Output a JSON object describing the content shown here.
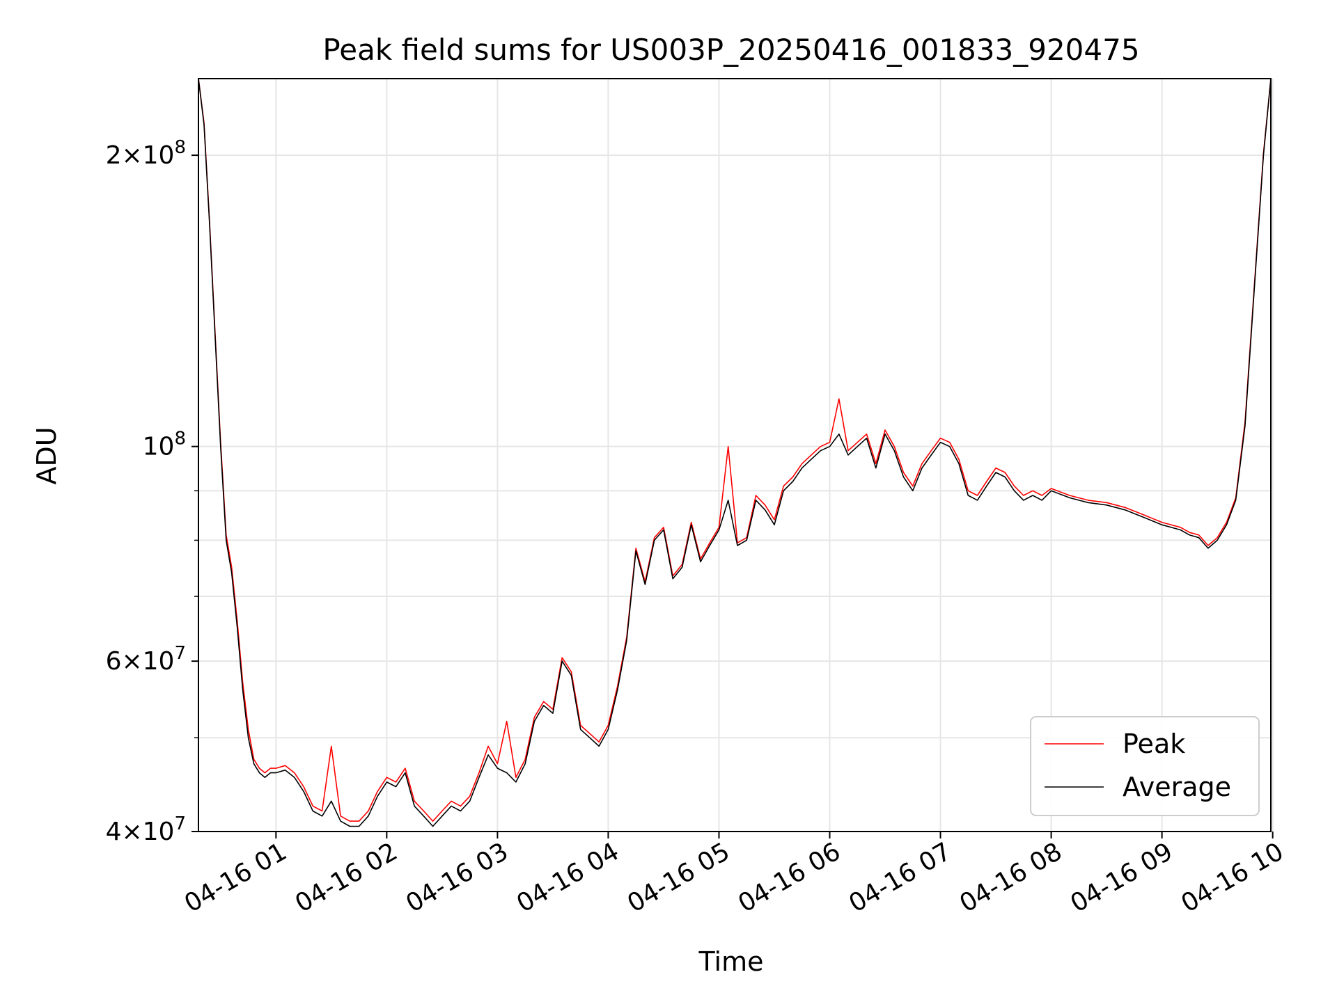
{
  "chart_data": {
    "type": "line",
    "title": "Peak field sums for US003P_20250416_001833_920475",
    "xlabel": "Time",
    "ylabel": "ADU",
    "y_scale": "log",
    "x_range": [
      "2025-04-16 00:18",
      "2025-04-16 09:59"
    ],
    "ylim": [
      40000000,
      240000000
    ],
    "x_ticks": [
      "04-16 01",
      "04-16 02",
      "04-16 03",
      "04-16 04",
      "04-16 05",
      "04-16 06",
      "04-16 07",
      "04-16 08",
      "04-16 09",
      "04-16 10"
    ],
    "y_ticks": [
      {
        "value": 40000000,
        "mant": "4",
        "exp": "7"
      },
      {
        "value": 60000000,
        "mant": "6",
        "exp": "7"
      },
      {
        "value": 100000000,
        "mant": "",
        "exp": "8"
      },
      {
        "value": 200000000,
        "mant": "2",
        "exp": "8"
      }
    ],
    "y_minor_ticks": [
      50000000,
      70000000,
      80000000,
      90000000
    ],
    "grid": true,
    "legend_position": "lower-right",
    "x_unit": "hours",
    "series": [
      {
        "name": "Average",
        "color": "#000000",
        "x": [
          "00:18",
          "00:21",
          "00:24",
          "00:27",
          "00:30",
          "00:33",
          "00:36",
          "00:39",
          "00:42",
          "00:45",
          "00:48",
          "00:51",
          "00:54",
          "00:57",
          "01:00",
          "01:05",
          "01:10",
          "01:15",
          "01:20",
          "01:25",
          "01:30",
          "01:35",
          "01:40",
          "01:45",
          "01:50",
          "01:55",
          "02:00",
          "02:05",
          "02:10",
          "02:15",
          "02:20",
          "02:25",
          "02:30",
          "02:35",
          "02:40",
          "02:45",
          "02:50",
          "02:55",
          "03:00",
          "03:05",
          "03:10",
          "03:15",
          "03:20",
          "03:25",
          "03:30",
          "03:35",
          "03:40",
          "03:45",
          "03:50",
          "03:55",
          "04:00",
          "04:05",
          "04:10",
          "04:15",
          "04:20",
          "04:25",
          "04:30",
          "04:35",
          "04:40",
          "04:45",
          "04:50",
          "04:55",
          "05:00",
          "05:05",
          "05:10",
          "05:15",
          "05:20",
          "05:25",
          "05:30",
          "05:35",
          "05:40",
          "05:45",
          "05:50",
          "05:55",
          "06:00",
          "06:05",
          "06:10",
          "06:15",
          "06:20",
          "06:25",
          "06:30",
          "06:35",
          "06:40",
          "06:45",
          "06:50",
          "06:55",
          "07:00",
          "07:05",
          "07:10",
          "07:15",
          "07:20",
          "07:25",
          "07:30",
          "07:35",
          "07:40",
          "07:45",
          "07:50",
          "07:55",
          "08:00",
          "08:10",
          "08:20",
          "08:30",
          "08:40",
          "08:50",
          "09:00",
          "09:10",
          "09:15",
          "09:20",
          "09:25",
          "09:30",
          "09:35",
          "09:40",
          "09:45",
          "09:50",
          "09:55",
          "09:59"
        ],
        "values": [
          240000000,
          215000000,
          170000000,
          130000000,
          100000000,
          80000000,
          74000000,
          65000000,
          56000000,
          50000000,
          47000000,
          46000000,
          45500000,
          46000000,
          46000000,
          46300000,
          45500000,
          44000000,
          42000000,
          41500000,
          43000000,
          41000000,
          40500000,
          40500000,
          41500000,
          43500000,
          45000000,
          44500000,
          46000000,
          42500000,
          41500000,
          40500000,
          41500000,
          42500000,
          42000000,
          43000000,
          45500000,
          48000000,
          46500000,
          46000000,
          45000000,
          47000000,
          52000000,
          54000000,
          53000000,
          60000000,
          58000000,
          51000000,
          50000000,
          49000000,
          51000000,
          56000000,
          63000000,
          78000000,
          72000000,
          80000000,
          82000000,
          73000000,
          75000000,
          83000000,
          76000000,
          79000000,
          82000000,
          88000000,
          79000000,
          80000000,
          88000000,
          86000000,
          83000000,
          90000000,
          92000000,
          95000000,
          97000000,
          99000000,
          100000000,
          103000000,
          98000000,
          100000000,
          102000000,
          95000000,
          103000000,
          99000000,
          93000000,
          90000000,
          95000000,
          98000000,
          101000000,
          100000000,
          96000000,
          89000000,
          88000000,
          91000000,
          94000000,
          93000000,
          90000000,
          88000000,
          89000000,
          88000000,
          90000000,
          88500000,
          87500000,
          87000000,
          86000000,
          84500000,
          83000000,
          82000000,
          81000000,
          80500000,
          78500000,
          80000000,
          83000000,
          88000000,
          105000000,
          145000000,
          200000000,
          240000000
        ]
      },
      {
        "name": "Peak",
        "color": "#ff0000",
        "x": [
          "00:18",
          "00:21",
          "00:24",
          "00:27",
          "00:30",
          "00:33",
          "00:36",
          "00:39",
          "00:42",
          "00:45",
          "00:48",
          "00:51",
          "00:54",
          "00:57",
          "01:00",
          "01:05",
          "01:10",
          "01:15",
          "01:20",
          "01:25",
          "01:30",
          "01:35",
          "01:40",
          "01:45",
          "01:50",
          "01:55",
          "02:00",
          "02:05",
          "02:10",
          "02:15",
          "02:20",
          "02:25",
          "02:30",
          "02:35",
          "02:40",
          "02:45",
          "02:50",
          "02:55",
          "03:00",
          "03:05",
          "03:10",
          "03:15",
          "03:20",
          "03:25",
          "03:30",
          "03:35",
          "03:40",
          "03:45",
          "03:50",
          "03:55",
          "04:00",
          "04:05",
          "04:10",
          "04:15",
          "04:20",
          "04:25",
          "04:30",
          "04:35",
          "04:40",
          "04:45",
          "04:50",
          "04:55",
          "05:00",
          "05:05",
          "05:10",
          "05:15",
          "05:20",
          "05:25",
          "05:30",
          "05:35",
          "05:40",
          "05:45",
          "05:50",
          "05:55",
          "06:00",
          "06:05",
          "06:10",
          "06:15",
          "06:20",
          "06:25",
          "06:30",
          "06:35",
          "06:40",
          "06:45",
          "06:50",
          "06:55",
          "07:00",
          "07:05",
          "07:10",
          "07:15",
          "07:20",
          "07:25",
          "07:30",
          "07:35",
          "07:40",
          "07:45",
          "07:50",
          "07:55",
          "08:00",
          "08:10",
          "08:20",
          "08:30",
          "08:40",
          "08:50",
          "09:00",
          "09:10",
          "09:15",
          "09:20",
          "09:25",
          "09:30",
          "09:35",
          "09:40",
          "09:45",
          "09:50",
          "09:55",
          "09:59"
        ],
        "values": [
          240000000,
          216000000,
          171000000,
          131000000,
          101000000,
          81000000,
          75000000,
          66000000,
          57000000,
          51000000,
          47500000,
          46500000,
          46000000,
          46500000,
          46500000,
          46800000,
          46000000,
          44500000,
          42500000,
          42000000,
          49000000,
          41500000,
          41000000,
          41000000,
          42000000,
          44000000,
          45500000,
          45000000,
          46500000,
          43000000,
          42000000,
          41000000,
          42000000,
          43000000,
          42500000,
          43500000,
          46000000,
          49000000,
          47000000,
          52000000,
          45500000,
          47500000,
          52500000,
          54500000,
          53500000,
          60500000,
          58500000,
          51500000,
          50500000,
          49500000,
          51500000,
          56500000,
          63500000,
          78500000,
          72500000,
          80500000,
          82500000,
          73500000,
          75500000,
          83500000,
          76500000,
          79500000,
          82500000,
          100000000,
          79500000,
          80500000,
          89000000,
          87000000,
          84000000,
          91000000,
          93000000,
          96000000,
          98000000,
          100000000,
          101000000,
          112000000,
          99000000,
          101000000,
          103000000,
          96000000,
          104000000,
          100000000,
          94000000,
          91000000,
          96000000,
          99000000,
          102000000,
          101000000,
          97000000,
          90000000,
          89000000,
          92000000,
          95000000,
          94000000,
          91000000,
          89000000,
          90000000,
          89000000,
          90500000,
          89000000,
          88000000,
          87500000,
          86500000,
          85000000,
          83500000,
          82500000,
          81500000,
          81000000,
          79000000,
          80500000,
          83500000,
          88500000,
          106000000,
          146000000,
          201000000,
          240000000
        ]
      }
    ]
  }
}
